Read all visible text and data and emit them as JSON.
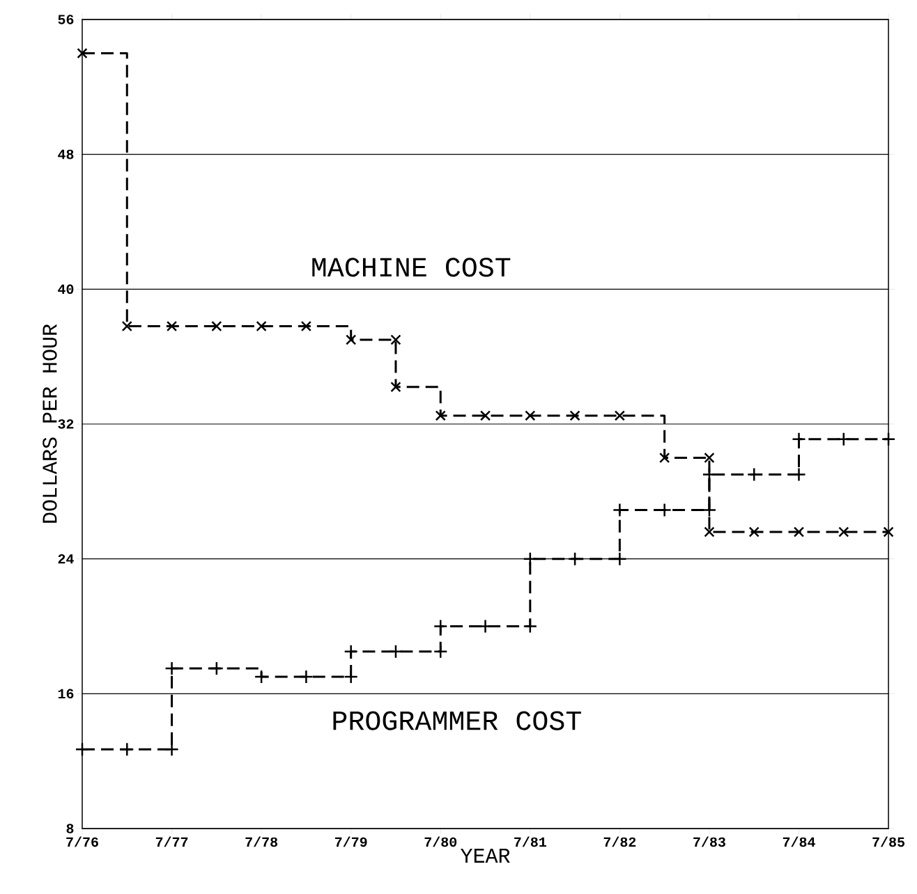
{
  "chart_data": {
    "type": "step",
    "xlabel": "YEAR",
    "ylabel": "DOLLARS PER HOUR",
    "xlim": [
      "1976-07",
      "1985-07"
    ],
    "ylim": [
      8,
      56
    ],
    "xticks": [
      {
        "value": "1976-07",
        "label": "7/76"
      },
      {
        "value": "1977-07",
        "label": "7/77"
      },
      {
        "value": "1978-07",
        "label": "7/78"
      },
      {
        "value": "1979-07",
        "label": "7/79"
      },
      {
        "value": "1980-07",
        "label": "7/80"
      },
      {
        "value": "1981-07",
        "label": "7/81"
      },
      {
        "value": "1982-07",
        "label": "7/82"
      },
      {
        "value": "1983-07",
        "label": "7/83"
      },
      {
        "value": "1984-07",
        "label": "7/84"
      },
      {
        "value": "1985-07",
        "label": "7/85"
      }
    ],
    "yticks": [
      8,
      16,
      24,
      32,
      40,
      48,
      56
    ],
    "grid": "y",
    "line_style": "dashed",
    "legend": false,
    "series": [
      {
        "name": "MACHINE COST",
        "color": "#000000",
        "marker": "cross",
        "x": [
          "1976-07",
          "1977-01",
          "1977-07",
          "1978-01",
          "1978-07",
          "1979-01",
          "1979-07",
          "1980-01",
          "1980-01",
          "1980-07",
          "1981-01",
          "1981-07",
          "1982-01",
          "1982-07",
          "1983-01",
          "1983-07",
          "1983-07",
          "1984-01",
          "1984-07",
          "1985-01",
          "1985-07"
        ],
        "values": [
          54,
          37.8,
          37.8,
          37.8,
          37.8,
          37.8,
          37,
          37,
          34.2,
          32.5,
          32.5,
          32.5,
          32.5,
          32.5,
          30,
          30,
          25.6,
          25.6,
          25.6,
          25.6,
          25.6
        ]
      },
      {
        "name": "PROGRAMMER COST",
        "color": "#000000",
        "marker": "plus",
        "x": [
          "1976-07",
          "1977-01",
          "1977-07",
          "1977-07",
          "1978-01",
          "1978-07",
          "1979-01",
          "1979-07",
          "1979-07",
          "1980-01",
          "1980-07",
          "1980-07",
          "1981-01",
          "1981-07",
          "1981-07",
          "1982-01",
          "1982-07",
          "1982-07",
          "1983-01",
          "1983-07",
          "1983-07",
          "1984-01",
          "1984-07",
          "1984-07",
          "1985-01",
          "1985-07"
        ],
        "values": [
          12.7,
          12.7,
          12.7,
          17.5,
          17.5,
          17,
          17,
          17,
          18.5,
          18.5,
          18.5,
          20,
          20,
          20,
          24,
          24,
          24,
          26.9,
          26.9,
          26.9,
          29,
          29,
          29,
          31.1,
          31.1,
          31.1
        ]
      }
    ]
  }
}
